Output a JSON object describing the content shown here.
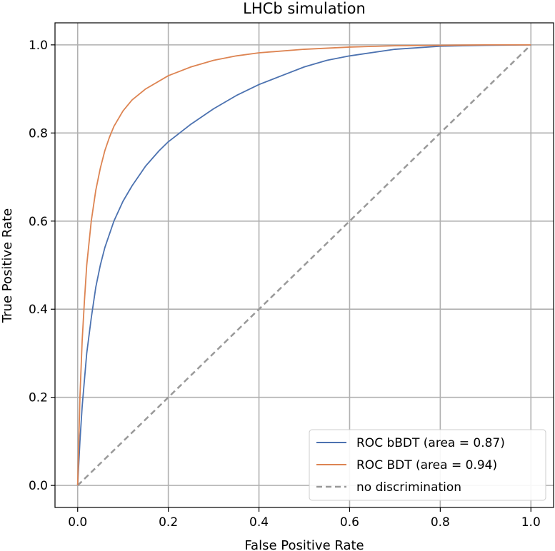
{
  "chart_data": {
    "type": "line",
    "title": "LHCb simulation",
    "xlabel": "False Positive Rate",
    "ylabel": "True Positive Rate",
    "xlim": [
      -0.05,
      1.05
    ],
    "ylim": [
      -0.05,
      1.05
    ],
    "x_ticks": [
      "0.0",
      "0.2",
      "0.4",
      "0.6",
      "0.8",
      "1.0"
    ],
    "y_ticks": [
      "0.0",
      "0.2",
      "0.4",
      "0.6",
      "0.8",
      "1.0"
    ],
    "x_tick_values": [
      0,
      0.2,
      0.4,
      0.6,
      0.8,
      1.0
    ],
    "y_tick_values": [
      0,
      0.2,
      0.4,
      0.6,
      0.8,
      1.0
    ],
    "grid": true,
    "legend_position": "lower-right",
    "series": [
      {
        "name": "ROC bBDT (area = 0.87)",
        "color": "#4c72b0",
        "style": "solid",
        "x": [
          0,
          0.005,
          0.01,
          0.02,
          0.03,
          0.04,
          0.05,
          0.06,
          0.08,
          0.1,
          0.12,
          0.15,
          0.18,
          0.2,
          0.25,
          0.3,
          0.35,
          0.4,
          0.45,
          0.5,
          0.55,
          0.6,
          0.7,
          0.8,
          0.9,
          1.0
        ],
        "y": [
          0,
          0.1,
          0.18,
          0.3,
          0.38,
          0.45,
          0.5,
          0.54,
          0.6,
          0.645,
          0.68,
          0.725,
          0.76,
          0.78,
          0.82,
          0.855,
          0.885,
          0.91,
          0.93,
          0.95,
          0.965,
          0.975,
          0.99,
          0.997,
          0.999,
          1.0
        ]
      },
      {
        "name": "ROC BDT (area = 0.94)",
        "color": "#dd8452",
        "style": "solid",
        "x": [
          0,
          0.005,
          0.01,
          0.015,
          0.02,
          0.03,
          0.04,
          0.05,
          0.06,
          0.07,
          0.08,
          0.1,
          0.12,
          0.15,
          0.2,
          0.25,
          0.3,
          0.35,
          0.4,
          0.5,
          0.6,
          0.7,
          0.8,
          0.9,
          1.0
        ],
        "y": [
          0,
          0.2,
          0.33,
          0.42,
          0.5,
          0.6,
          0.67,
          0.72,
          0.76,
          0.79,
          0.815,
          0.85,
          0.875,
          0.9,
          0.93,
          0.95,
          0.965,
          0.975,
          0.982,
          0.99,
          0.995,
          0.998,
          0.999,
          1.0,
          1.0
        ]
      },
      {
        "name": "no discrimination",
        "color": "#999999",
        "style": "dashed",
        "x": [
          0,
          1
        ],
        "y": [
          0,
          1
        ]
      }
    ]
  }
}
